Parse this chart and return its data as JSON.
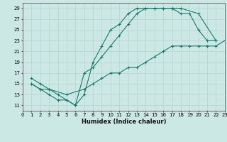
{
  "xlabel": "Humidex (Indice chaleur)",
  "xlim": [
    0,
    23
  ],
  "ylim": [
    10,
    30
  ],
  "xticks": [
    0,
    1,
    2,
    3,
    4,
    5,
    6,
    7,
    8,
    9,
    10,
    11,
    12,
    13,
    14,
    15,
    16,
    17,
    18,
    19,
    20,
    21,
    22,
    23
  ],
  "yticks": [
    11,
    13,
    15,
    17,
    19,
    21,
    23,
    25,
    27,
    29
  ],
  "bg_color": "#cce8e4",
  "line_color": "#1a7a6e",
  "grid_color": "#b8d8d4",
  "lines": [
    {
      "x": [
        1,
        2,
        3,
        4,
        5,
        6,
        7,
        8,
        9,
        10,
        11,
        12,
        13,
        14,
        15,
        16,
        17,
        18,
        19,
        20,
        21,
        22
      ],
      "y": [
        16,
        15,
        14,
        13,
        12,
        11,
        17,
        18,
        20,
        22,
        24,
        26,
        28,
        29,
        29,
        29,
        29,
        28,
        28,
        25,
        23,
        23
      ]
    },
    {
      "x": [
        1,
        2,
        3,
        4,
        5,
        6,
        7,
        8,
        9,
        10,
        11,
        12,
        13,
        14,
        15,
        16,
        17,
        18,
        20,
        22
      ],
      "y": [
        15,
        14,
        13,
        12,
        12,
        11,
        13,
        19,
        22,
        25,
        26,
        28,
        29,
        29,
        29,
        29,
        29,
        29,
        28,
        23
      ]
    },
    {
      "x": [
        1,
        2,
        3,
        5,
        7,
        8,
        9,
        10,
        11,
        12,
        13,
        14,
        15,
        16,
        17,
        18,
        19,
        20,
        21,
        22,
        23
      ],
      "y": [
        15,
        14,
        14,
        13,
        14,
        15,
        16,
        17,
        17,
        18,
        18,
        19,
        20,
        21,
        22,
        22,
        22,
        22,
        22,
        22,
        23
      ]
    }
  ]
}
